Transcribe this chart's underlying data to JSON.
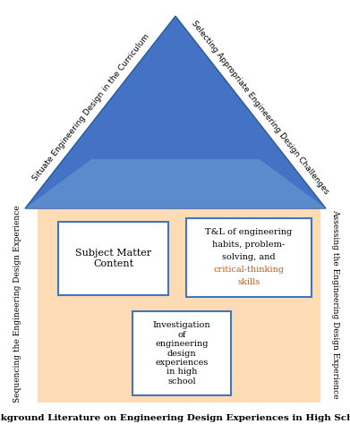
{
  "fig_width": 3.91,
  "fig_height": 4.83,
  "bg_color": "#ffffff",
  "house_body_color": "#FDDCB5",
  "roof_color": "#4472C4",
  "roof_color_light": "#6A9FD4",
  "box_bg": "#ffffff",
  "box_edge": "#4472C4",
  "title_text": "Background Literature on Engineering Design Experiences in High School",
  "title_fontsize": 7.5,
  "left_label": "Sequencing the Engineering Design Experience",
  "right_label": "Assessing the Engineering Design Experience",
  "left_roof_label": "Situate Engineering Design in the Curriculum",
  "right_roof_label": "Selecting Appropriate Engineering Design Challenges",
  "box1_text": "Subject Matter\nContent",
  "box3_text": "Investigation\nof\nengineering\ndesign\nexperiences\nin high\nschool",
  "highlight_color": "#C55A11",
  "box2_lines": [
    [
      "T&L of engineering",
      "black"
    ],
    [
      "habits, problem-",
      "black"
    ],
    [
      "solving, and",
      "black"
    ],
    [
      "critical-thinking",
      "#C55A11"
    ],
    [
      "skills",
      "#C55A11"
    ]
  ]
}
